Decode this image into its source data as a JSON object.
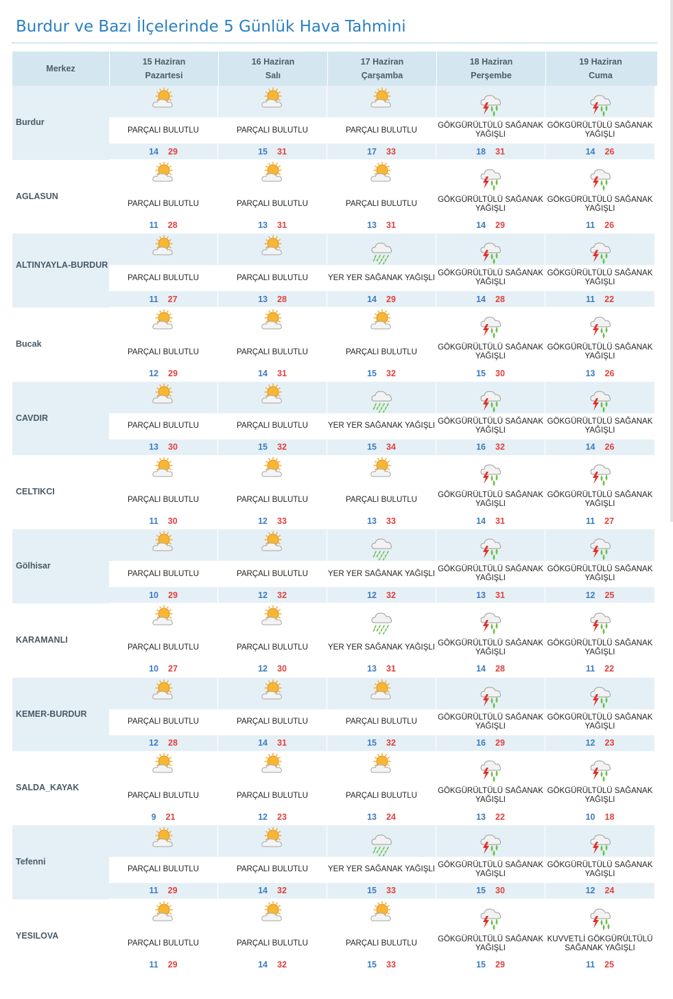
{
  "page": {
    "title": "Burdur ve Bazı İlçelerinde 5 Günlük Hava Tahmini"
  },
  "table": {
    "corner_label": "Merkez",
    "days": [
      {
        "date": "15 Haziran",
        "weekday": "Pazartesi"
      },
      {
        "date": "16 Haziran",
        "weekday": "Salı"
      },
      {
        "date": "17 Haziran",
        "weekday": "Çarşamba"
      },
      {
        "date": "18 Haziran",
        "weekday": "Perşembe"
      },
      {
        "date": "19 Haziran",
        "weekday": "Cuma"
      }
    ],
    "rows": [
      {
        "name": "Burdur",
        "forecasts": [
          {
            "icon": "partly-cloudy-icon",
            "desc": "PARÇALI BULUTLU",
            "min": "14",
            "max": "29"
          },
          {
            "icon": "partly-cloudy-icon",
            "desc": "PARÇALI BULUTLU",
            "min": "15",
            "max": "31"
          },
          {
            "icon": "partly-cloudy-icon",
            "desc": "PARÇALI BULUTLU",
            "min": "17",
            "max": "33"
          },
          {
            "icon": "thunder-shower-icon",
            "desc": "GÖKGÜRÜLTÜLÜ SAĞANAK YAĞIŞLI",
            "min": "18",
            "max": "31"
          },
          {
            "icon": "thunder-shower-icon",
            "desc": "GÖKGÜRÜLTÜLÜ SAĞANAK YAĞIŞLI",
            "min": "14",
            "max": "26"
          }
        ]
      },
      {
        "name": "AGLASUN",
        "forecasts": [
          {
            "icon": "partly-cloudy-icon",
            "desc": "PARÇALI BULUTLU",
            "min": "11",
            "max": "28"
          },
          {
            "icon": "partly-cloudy-icon",
            "desc": "PARÇALI BULUTLU",
            "min": "13",
            "max": "31"
          },
          {
            "icon": "partly-cloudy-icon",
            "desc": "PARÇALI BULUTLU",
            "min": "13",
            "max": "31"
          },
          {
            "icon": "thunder-shower-icon",
            "desc": "GÖKGÜRÜLTÜLÜ SAĞANAK YAĞIŞLI",
            "min": "14",
            "max": "29"
          },
          {
            "icon": "thunder-shower-icon",
            "desc": "GÖKGÜRÜLTÜLÜ SAĞANAK YAĞIŞLI",
            "min": "11",
            "max": "26"
          }
        ]
      },
      {
        "name": "ALTINYAYLA-BURDUR",
        "forecasts": [
          {
            "icon": "partly-cloudy-icon",
            "desc": "PARÇALI BULUTLU",
            "min": "11",
            "max": "27"
          },
          {
            "icon": "partly-cloudy-icon",
            "desc": "PARÇALI BULUTLU",
            "min": "13",
            "max": "28"
          },
          {
            "icon": "shower-icon",
            "desc": "YER YER SAĞANAK YAĞIŞLI",
            "min": "14",
            "max": "29"
          },
          {
            "icon": "thunder-shower-icon",
            "desc": "GÖKGÜRÜLTÜLÜ SAĞANAK YAĞIŞLI",
            "min": "14",
            "max": "28"
          },
          {
            "icon": "thunder-shower-icon",
            "desc": "GÖKGÜRÜLTÜLÜ SAĞANAK YAĞIŞLI",
            "min": "11",
            "max": "22"
          }
        ]
      },
      {
        "name": "Bucak",
        "forecasts": [
          {
            "icon": "partly-cloudy-icon",
            "desc": "PARÇALI BULUTLU",
            "min": "12",
            "max": "29"
          },
          {
            "icon": "partly-cloudy-icon",
            "desc": "PARÇALI BULUTLU",
            "min": "14",
            "max": "31"
          },
          {
            "icon": "partly-cloudy-icon",
            "desc": "PARÇALI BULUTLU",
            "min": "15",
            "max": "32"
          },
          {
            "icon": "thunder-shower-icon",
            "desc": "GÖKGÜRÜLTÜLÜ SAĞANAK YAĞIŞLI",
            "min": "15",
            "max": "30"
          },
          {
            "icon": "thunder-shower-icon",
            "desc": "GÖKGÜRÜLTÜLÜ SAĞANAK YAĞIŞLI",
            "min": "13",
            "max": "26"
          }
        ]
      },
      {
        "name": "CAVDIR",
        "forecasts": [
          {
            "icon": "partly-cloudy-icon",
            "desc": "PARÇALI BULUTLU",
            "min": "13",
            "max": "30"
          },
          {
            "icon": "partly-cloudy-icon",
            "desc": "PARÇALI BULUTLU",
            "min": "15",
            "max": "32"
          },
          {
            "icon": "shower-icon",
            "desc": "YER YER SAĞANAK YAĞIŞLI",
            "min": "15",
            "max": "34"
          },
          {
            "icon": "thunder-shower-icon",
            "desc": "GÖKGÜRÜLTÜLÜ SAĞANAK YAĞIŞLI",
            "min": "16",
            "max": "32"
          },
          {
            "icon": "thunder-shower-icon",
            "desc": "GÖKGÜRÜLTÜLÜ SAĞANAK YAĞIŞLI",
            "min": "14",
            "max": "26"
          }
        ]
      },
      {
        "name": "CELTIKCI",
        "forecasts": [
          {
            "icon": "partly-cloudy-icon",
            "desc": "PARÇALI BULUTLU",
            "min": "11",
            "max": "30"
          },
          {
            "icon": "partly-cloudy-icon",
            "desc": "PARÇALI BULUTLU",
            "min": "12",
            "max": "33"
          },
          {
            "icon": "partly-cloudy-icon",
            "desc": "PARÇALI BULUTLU",
            "min": "13",
            "max": "33"
          },
          {
            "icon": "thunder-shower-icon",
            "desc": "GÖKGÜRÜLTÜLÜ SAĞANAK YAĞIŞLI",
            "min": "14",
            "max": "31"
          },
          {
            "icon": "thunder-shower-icon",
            "desc": "GÖKGÜRÜLTÜLÜ SAĞANAK YAĞIŞLI",
            "min": "11",
            "max": "27"
          }
        ]
      },
      {
        "name": "Gölhisar",
        "forecasts": [
          {
            "icon": "partly-cloudy-icon",
            "desc": "PARÇALI BULUTLU",
            "min": "10",
            "max": "29"
          },
          {
            "icon": "partly-cloudy-icon",
            "desc": "PARÇALI BULUTLU",
            "min": "12",
            "max": "32"
          },
          {
            "icon": "shower-icon",
            "desc": "YER YER SAĞANAK YAĞIŞLI",
            "min": "12",
            "max": "32"
          },
          {
            "icon": "thunder-shower-icon",
            "desc": "GÖKGÜRÜLTÜLÜ SAĞANAK YAĞIŞLI",
            "min": "13",
            "max": "31"
          },
          {
            "icon": "thunder-shower-icon",
            "desc": "GÖKGÜRÜLTÜLÜ SAĞANAK YAĞIŞLI",
            "min": "12",
            "max": "25"
          }
        ]
      },
      {
        "name": "KARAMANLI",
        "forecasts": [
          {
            "icon": "partly-cloudy-icon",
            "desc": "PARÇALI BULUTLU",
            "min": "10",
            "max": "27"
          },
          {
            "icon": "partly-cloudy-icon",
            "desc": "PARÇALI BULUTLU",
            "min": "12",
            "max": "30"
          },
          {
            "icon": "shower-icon",
            "desc": "YER YER SAĞANAK YAĞIŞLI",
            "min": "13",
            "max": "31"
          },
          {
            "icon": "thunder-shower-icon",
            "desc": "GÖKGÜRÜLTÜLÜ SAĞANAK YAĞIŞLI",
            "min": "14",
            "max": "28"
          },
          {
            "icon": "thunder-shower-icon",
            "desc": "GÖKGÜRÜLTÜLÜ SAĞANAK YAĞIŞLI",
            "min": "11",
            "max": "22"
          }
        ]
      },
      {
        "name": "KEMER-BURDUR",
        "forecasts": [
          {
            "icon": "partly-cloudy-icon",
            "desc": "PARÇALI BULUTLU",
            "min": "12",
            "max": "28"
          },
          {
            "icon": "partly-cloudy-icon",
            "desc": "PARÇALI BULUTLU",
            "min": "14",
            "max": "31"
          },
          {
            "icon": "partly-cloudy-icon",
            "desc": "PARÇALI BULUTLU",
            "min": "15",
            "max": "32"
          },
          {
            "icon": "thunder-shower-icon",
            "desc": "GÖKGÜRÜLTÜLÜ SAĞANAK YAĞIŞLI",
            "min": "16",
            "max": "29"
          },
          {
            "icon": "thunder-shower-icon",
            "desc": "GÖKGÜRÜLTÜLÜ SAĞANAK YAĞIŞLI",
            "min": "12",
            "max": "23"
          }
        ]
      },
      {
        "name": "SALDA_KAYAK",
        "forecasts": [
          {
            "icon": "partly-cloudy-icon",
            "desc": "PARÇALI BULUTLU",
            "min": "9",
            "max": "21"
          },
          {
            "icon": "partly-cloudy-icon",
            "desc": "PARÇALI BULUTLU",
            "min": "12",
            "max": "23"
          },
          {
            "icon": "partly-cloudy-icon",
            "desc": "PARÇALI BULUTLU",
            "min": "13",
            "max": "24"
          },
          {
            "icon": "thunder-shower-icon",
            "desc": "GÖKGÜRÜLTÜLÜ SAĞANAK YAĞIŞLI",
            "min": "13",
            "max": "22"
          },
          {
            "icon": "thunder-shower-icon",
            "desc": "GÖKGÜRÜLTÜLÜ SAĞANAK YAĞIŞLI",
            "min": "10",
            "max": "18"
          }
        ]
      },
      {
        "name": "Tefenni",
        "forecasts": [
          {
            "icon": "partly-cloudy-icon",
            "desc": "PARÇALI BULUTLU",
            "min": "11",
            "max": "29"
          },
          {
            "icon": "partly-cloudy-icon",
            "desc": "PARÇALI BULUTLU",
            "min": "14",
            "max": "32"
          },
          {
            "icon": "shower-icon",
            "desc": "YER YER SAĞANAK YAĞIŞLI",
            "min": "15",
            "max": "33"
          },
          {
            "icon": "thunder-shower-icon",
            "desc": "GÖKGÜRÜLTÜLÜ SAĞANAK YAĞIŞLI",
            "min": "15",
            "max": "30"
          },
          {
            "icon": "thunder-shower-icon",
            "desc": "GÖKGÜRÜLTÜLÜ SAĞANAK YAĞIŞLI",
            "min": "12",
            "max": "24"
          }
        ]
      },
      {
        "name": "YESILOVA",
        "forecasts": [
          {
            "icon": "partly-cloudy-icon",
            "desc": "PARÇALI BULUTLU",
            "min": "11",
            "max": "29"
          },
          {
            "icon": "partly-cloudy-icon",
            "desc": "PARÇALI BULUTLU",
            "min": "14",
            "max": "32"
          },
          {
            "icon": "partly-cloudy-icon",
            "desc": "PARÇALI BULUTLU",
            "min": "15",
            "max": "33"
          },
          {
            "icon": "thunder-shower-icon",
            "desc": "GÖKGÜRÜLTÜLÜ SAĞANAK YAĞIŞLI",
            "min": "15",
            "max": "29"
          },
          {
            "icon": "strong-thunder-shower-icon",
            "desc": "KUVVETLİ GÖKGÜRÜLTÜLÜ SAĞANAK YAĞIŞLI",
            "min": "11",
            "max": "25"
          }
        ]
      }
    ]
  },
  "colors": {
    "title": "#2a7fbf",
    "header_bg": "#d4e7f1",
    "row_shade": "#e5f0f6",
    "min_temp": "#3c7bc3",
    "max_temp": "#e0403c"
  }
}
